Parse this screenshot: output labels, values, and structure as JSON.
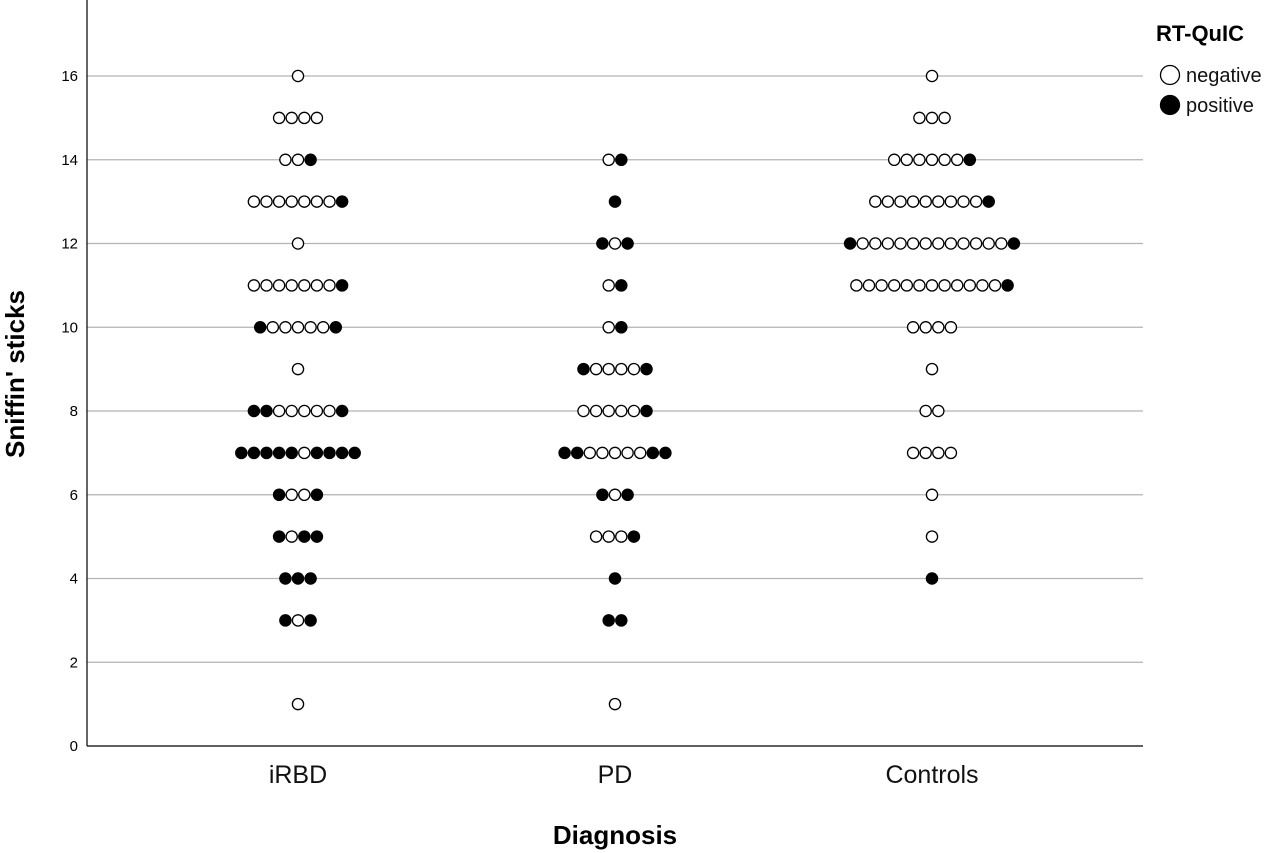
{
  "chart_data": {
    "type": "scatter",
    "xlabel": "Diagnosis",
    "ylabel": "Sniffin' sticks",
    "categories": [
      "iRBD",
      "PD",
      "Controls"
    ],
    "ylim": [
      0,
      17.5
    ],
    "yticks": [
      0,
      2,
      4,
      6,
      8,
      10,
      12,
      14,
      16
    ],
    "grid": true,
    "legend": {
      "title": "RT-QuIC",
      "position": "top-right",
      "entries": [
        {
          "label": "negative",
          "fill": "#ffffff"
        },
        {
          "label": "positive",
          "fill": "#000000"
        }
      ]
    },
    "groups": [
      {
        "category": "iRBD",
        "rows": [
          {
            "y": 16,
            "points": [
              "negative"
            ]
          },
          {
            "y": 15,
            "points": [
              "negative",
              "negative",
              "negative",
              "negative"
            ]
          },
          {
            "y": 14,
            "points": [
              "negative",
              "negative",
              "positive"
            ]
          },
          {
            "y": 13,
            "points": [
              "negative",
              "negative",
              "negative",
              "negative",
              "negative",
              "negative",
              "negative",
              "positive"
            ]
          },
          {
            "y": 12,
            "points": [
              "negative"
            ]
          },
          {
            "y": 11,
            "points": [
              "negative",
              "negative",
              "negative",
              "negative",
              "negative",
              "negative",
              "negative",
              "positive"
            ]
          },
          {
            "y": 10,
            "points": [
              "positive",
              "negative",
              "negative",
              "negative",
              "negative",
              "negative",
              "positive"
            ]
          },
          {
            "y": 9,
            "points": [
              "negative"
            ]
          },
          {
            "y": 8,
            "points": [
              "positive",
              "positive",
              "negative",
              "negative",
              "negative",
              "negative",
              "negative",
              "positive"
            ]
          },
          {
            "y": 7,
            "points": [
              "positive",
              "positive",
              "positive",
              "positive",
              "positive",
              "negative",
              "positive",
              "positive",
              "positive",
              "positive"
            ]
          },
          {
            "y": 6,
            "points": [
              "positive",
              "negative",
              "negative",
              "positive"
            ]
          },
          {
            "y": 5,
            "points": [
              "positive",
              "negative",
              "positive",
              "positive"
            ]
          },
          {
            "y": 4,
            "points": [
              "positive",
              "positive",
              "positive"
            ]
          },
          {
            "y": 3,
            "points": [
              "positive",
              "negative",
              "positive"
            ]
          },
          {
            "y": 1,
            "points": [
              "negative"
            ]
          }
        ]
      },
      {
        "category": "PD",
        "rows": [
          {
            "y": 14,
            "points": [
              "negative",
              "positive"
            ]
          },
          {
            "y": 13,
            "points": [
              "positive"
            ]
          },
          {
            "y": 12,
            "points": [
              "positive",
              "negative",
              "positive"
            ]
          },
          {
            "y": 11,
            "points": [
              "negative",
              "positive"
            ]
          },
          {
            "y": 10,
            "points": [
              "negative",
              "positive"
            ]
          },
          {
            "y": 9,
            "points": [
              "positive",
              "negative",
              "negative",
              "negative",
              "negative",
              "positive"
            ]
          },
          {
            "y": 8,
            "points": [
              "negative",
              "negative",
              "negative",
              "negative",
              "negative",
              "positive"
            ]
          },
          {
            "y": 7,
            "points": [
              "positive",
              "positive",
              "negative",
              "negative",
              "negative",
              "negative",
              "negative",
              "positive",
              "positive"
            ]
          },
          {
            "y": 6,
            "points": [
              "positive",
              "negative",
              "positive"
            ]
          },
          {
            "y": 5,
            "points": [
              "negative",
              "negative",
              "negative",
              "positive"
            ]
          },
          {
            "y": 4,
            "points": [
              "positive"
            ]
          },
          {
            "y": 3,
            "points": [
              "positive",
              "positive"
            ]
          },
          {
            "y": 1,
            "points": [
              "negative"
            ]
          }
        ]
      },
      {
        "category": "Controls",
        "rows": [
          {
            "y": 16,
            "points": [
              "negative"
            ]
          },
          {
            "y": 15,
            "points": [
              "negative",
              "negative",
              "negative"
            ]
          },
          {
            "y": 14,
            "points": [
              "negative",
              "negative",
              "negative",
              "negative",
              "negative",
              "negative",
              "positive"
            ]
          },
          {
            "y": 13,
            "points": [
              "negative",
              "negative",
              "negative",
              "negative",
              "negative",
              "negative",
              "negative",
              "negative",
              "negative",
              "positive"
            ]
          },
          {
            "y": 12,
            "points": [
              "positive",
              "negative",
              "negative",
              "negative",
              "negative",
              "negative",
              "negative",
              "negative",
              "negative",
              "negative",
              "negative",
              "negative",
              "negative",
              "positive"
            ]
          },
          {
            "y": 11,
            "points": [
              "negative",
              "negative",
              "negative",
              "negative",
              "negative",
              "negative",
              "negative",
              "negative",
              "negative",
              "negative",
              "negative",
              "negative",
              "positive"
            ]
          },
          {
            "y": 10,
            "points": [
              "negative",
              "negative",
              "negative",
              "negative"
            ]
          },
          {
            "y": 9,
            "points": [
              "negative"
            ]
          },
          {
            "y": 8,
            "points": [
              "negative",
              "negative"
            ]
          },
          {
            "y": 7,
            "points": [
              "negative",
              "negative",
              "negative",
              "negative"
            ]
          },
          {
            "y": 6,
            "points": [
              "negative"
            ]
          },
          {
            "y": 5,
            "points": [
              "negative"
            ]
          },
          {
            "y": 4,
            "points": [
              "positive"
            ]
          }
        ]
      }
    ]
  }
}
